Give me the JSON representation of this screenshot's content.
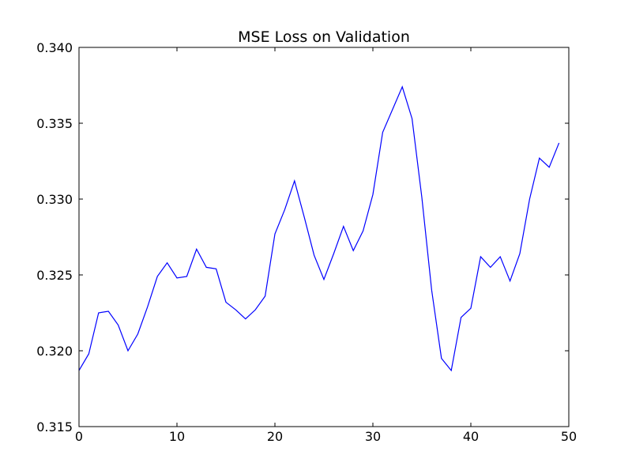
{
  "chart_data": {
    "type": "line",
    "title": "MSE Loss on Validation",
    "xlabel": "",
    "ylabel": "",
    "xlim": [
      0,
      50
    ],
    "ylim": [
      0.315,
      0.34
    ],
    "x_ticks": [
      0,
      10,
      20,
      30,
      40,
      50
    ],
    "y_ticks": [
      0.315,
      0.32,
      0.325,
      0.33,
      0.335,
      0.34
    ],
    "x_tick_labels": [
      "0",
      "10",
      "20",
      "30",
      "40",
      "50"
    ],
    "y_tick_labels": [
      "0.315",
      "0.320",
      "0.325",
      "0.330",
      "0.335",
      "0.340"
    ],
    "grid": false,
    "legend": "none",
    "series": [
      {
        "color": "#0000ff",
        "x": [
          0,
          1,
          2,
          3,
          4,
          5,
          6,
          7,
          8,
          9,
          10,
          11,
          12,
          13,
          14,
          15,
          16,
          17,
          18,
          19,
          20,
          21,
          22,
          23,
          24,
          25,
          26,
          27,
          28,
          29,
          30,
          31,
          32,
          33,
          34,
          35,
          36,
          37,
          38,
          39,
          40,
          41,
          42,
          43,
          44,
          45,
          46,
          47,
          48,
          49
        ],
        "y": [
          0.3187,
          0.3198,
          0.3225,
          0.3226,
          0.3217,
          0.32,
          0.3211,
          0.3229,
          0.3249,
          0.3258,
          0.3248,
          0.3249,
          0.3267,
          0.3255,
          0.3254,
          0.3232,
          0.3227,
          0.3221,
          0.3227,
          0.3236,
          0.3277,
          0.3293,
          0.3312,
          0.3288,
          0.3263,
          0.3247,
          0.3264,
          0.3282,
          0.3266,
          0.3279,
          0.3303,
          0.3344,
          0.3359,
          0.3374,
          0.3353,
          0.3301,
          0.324,
          0.3195,
          0.3187,
          0.3222,
          0.3228,
          0.3262,
          0.3255,
          0.3262,
          0.3246,
          0.3264,
          0.33,
          0.3327,
          0.3321,
          0.3337
        ]
      }
    ]
  }
}
